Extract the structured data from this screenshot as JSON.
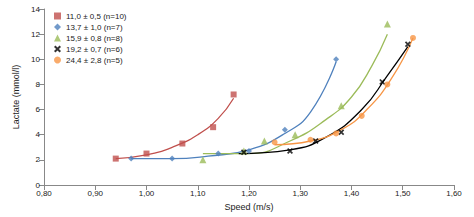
{
  "chart_data": {
    "type": "scatter",
    "xlabel": "Speed (m/s)",
    "ylabel": "Lactate (mmol/l)",
    "xlim": [
      0.8,
      1.6
    ],
    "xticks": [
      {
        "value": 0.8,
        "label": "0,80"
      },
      {
        "value": 0.9,
        "label": "0,90"
      },
      {
        "value": 1.0,
        "label": "1,00"
      },
      {
        "value": 1.1,
        "label": "1,10"
      },
      {
        "value": 1.2,
        "label": "1,20"
      },
      {
        "value": 1.3,
        "label": "1,30"
      },
      {
        "value": 1.4,
        "label": "1,40"
      },
      {
        "value": 1.5,
        "label": "1,50"
      },
      {
        "value": 1.6,
        "label": "1,60"
      }
    ],
    "ylim": [
      0,
      14
    ],
    "yticks": [
      0,
      2,
      4,
      6,
      8,
      10,
      12,
      14
    ],
    "grid": false,
    "legend": "upper left",
    "series": [
      {
        "name": "11,0 ± 0,5 (n=10)",
        "color": "#c0504d",
        "marker": "square",
        "x": [
          0.94,
          1.0,
          1.07,
          1.13,
          1.17
        ],
        "values": [
          2.1,
          2.5,
          3.3,
          4.6,
          7.2
        ],
        "trend": {
          "x": [
            0.94,
            1.0,
            1.05,
            1.1,
            1.14,
            1.17
          ],
          "values": [
            2.1,
            2.4,
            3.0,
            4.0,
            5.3,
            6.9
          ]
        }
      },
      {
        "name": "13,7 ± 1,0 (n=7)",
        "color": "#4f81bd",
        "marker": "diamond",
        "x": [
          0.97,
          1.05,
          1.14,
          1.2,
          1.27,
          1.37
        ],
        "values": [
          2.1,
          2.1,
          2.5,
          2.7,
          4.4,
          10.0
        ],
        "trend": {
          "x": [
            0.97,
            1.05,
            1.12,
            1.2,
            1.27,
            1.32,
            1.37
          ],
          "values": [
            2.1,
            2.1,
            2.3,
            2.8,
            4.1,
            5.8,
            9.8
          ]
        }
      },
      {
        "name": "15,9 ± 0,8 (n=8)",
        "color": "#9bbb59",
        "marker": "triangle",
        "x": [
          1.11,
          1.19,
          1.23,
          1.29,
          1.38,
          1.47
        ],
        "values": [
          2.0,
          2.7,
          3.5,
          4.0,
          6.3,
          12.8
        ],
        "trend": {
          "x": [
            1.11,
            1.2,
            1.28,
            1.35,
            1.4,
            1.44,
            1.47
          ],
          "values": [
            2.5,
            2.5,
            3.5,
            5.2,
            7.0,
            9.5,
            12.0
          ]
        }
      },
      {
        "name": "19,2 ± 0,7 (n=6)",
        "color": "#000000",
        "marker": "cross",
        "x": [
          1.19,
          1.28,
          1.33,
          1.38,
          1.46,
          1.51
        ],
        "values": [
          2.6,
          2.7,
          3.5,
          4.2,
          8.2,
          11.2
        ],
        "trend": {
          "x": [
            1.18,
            1.28,
            1.35,
            1.42,
            1.47,
            1.51
          ],
          "values": [
            2.5,
            2.8,
            3.8,
            6.0,
            8.7,
            11.0
          ]
        }
      },
      {
        "name": "24,4 ± 2,8 (n=5)",
        "color": "#f79646",
        "marker": "circle",
        "x": [
          1.25,
          1.32,
          1.37,
          1.42,
          1.47,
          1.52
        ],
        "values": [
          3.4,
          3.6,
          4.1,
          5.5,
          8.0,
          11.7
        ],
        "trend": {
          "x": [
            1.25,
            1.32,
            1.38,
            1.43,
            1.48,
            1.52
          ],
          "values": [
            3.2,
            3.5,
            4.4,
            6.0,
            8.6,
            11.7
          ]
        }
      }
    ]
  }
}
